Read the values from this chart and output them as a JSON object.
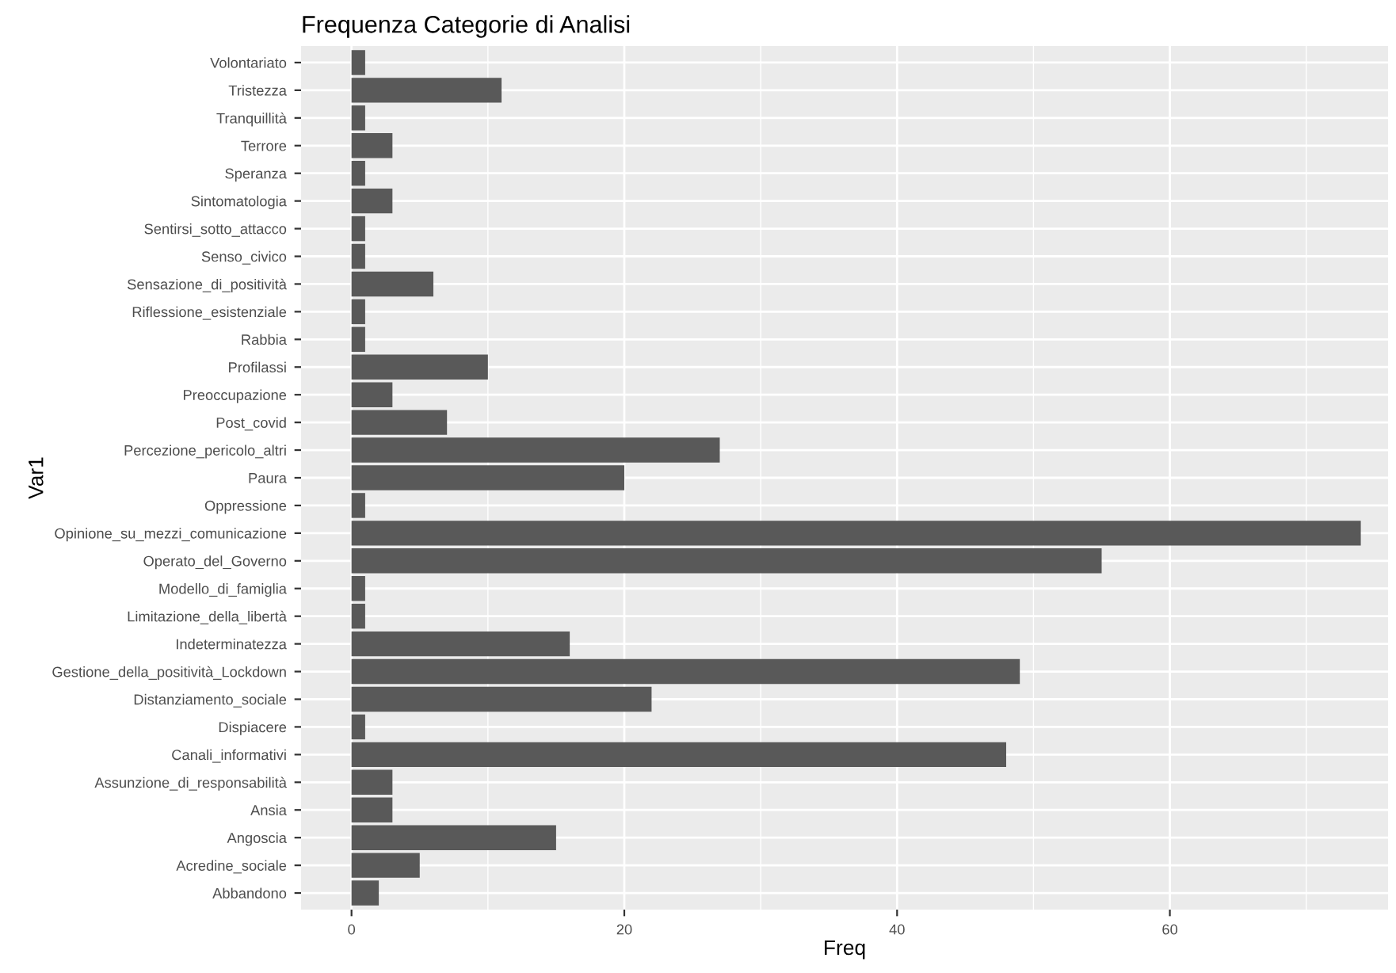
{
  "chart_data": {
    "type": "bar",
    "orientation": "horizontal",
    "title": "Frequenza Categorie di Analisi",
    "xlabel": "Freq",
    "ylabel": "Var1",
    "categories": [
      "Volontariato",
      "Tristezza",
      "Tranquillità",
      "Terrore",
      "Speranza",
      "Sintomatologia",
      "Sentirsi_sotto_attacco",
      "Senso_civico",
      "Sensazione_di_positività",
      "Riflessione_esistenziale",
      "Rabbia",
      "Profilassi",
      "Preoccupazione",
      "Post_covid",
      "Percezione_pericolo_altri",
      "Paura",
      "Oppressione",
      "Opinione_su_mezzi_comunicazione",
      "Operato_del_Governo",
      "Modello_di_famiglia",
      "Limitazione_della_libertà",
      "Indeterminatezza",
      "Gestione_della_positività_Lockdown",
      "Distanziamento_sociale",
      "Dispiacere",
      "Canali_informativi",
      "Assunzione_di_responsabilità",
      "Ansia",
      "Angoscia",
      "Acredine_sociale",
      "Abbandono"
    ],
    "values": [
      1,
      11,
      1,
      3,
      1,
      3,
      1,
      1,
      6,
      1,
      1,
      10,
      3,
      7,
      27,
      20,
      1,
      74,
      55,
      1,
      1,
      16,
      49,
      22,
      1,
      48,
      3,
      3,
      15,
      5,
      2
    ],
    "color": "#595959",
    "xlim": [
      -3.7,
      76
    ],
    "xticks": [
      0,
      20,
      40,
      60
    ],
    "grid": true
  }
}
